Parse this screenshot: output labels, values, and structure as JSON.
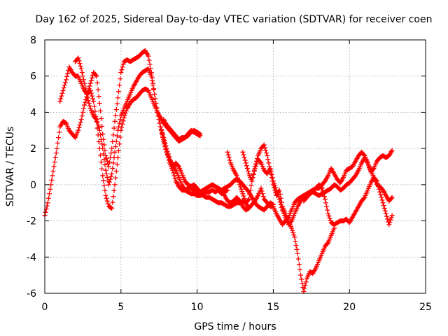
{
  "chart_data": {
    "type": "scatter",
    "title": "Day 162 of 2025, Sidereal Day-to-day VTEC variation (SDTVAR) for receiver coen",
    "xlabel": "GPS time / hours",
    "ylabel": "SDTVAR / TECUs",
    "xlim": [
      0,
      25
    ],
    "ylim": [
      -6,
      8
    ],
    "xticks": [
      "0",
      "5",
      "10",
      "15",
      "20",
      "25"
    ],
    "yticks": [
      "-6",
      "-4",
      "-2",
      "0",
      "2",
      "4",
      "6",
      "8"
    ],
    "grid": true,
    "marker": "+",
    "color": "#ff0000",
    "series": [
      {
        "x": [
          0.0,
          0.2,
          0.4,
          0.6,
          0.8,
          1.0,
          1.2,
          1.4,
          1.6,
          1.8,
          2.0,
          2.2,
          2.4,
          2.6,
          2.8,
          3.0,
          3.2,
          3.4,
          3.6,
          3.8,
          4.0,
          4.2,
          4.4,
          4.6,
          4.8,
          5.0,
          5.2,
          5.4,
          5.6,
          5.8,
          6.0,
          6.2,
          6.4,
          6.6,
          6.8,
          7.0,
          7.2,
          7.4,
          7.6,
          7.8,
          8.0,
          8.2,
          8.4,
          8.6,
          8.8,
          9.0,
          9.2,
          9.4,
          9.6,
          9.8,
          10.0,
          10.2
        ],
        "y": [
          -1.7,
          -1.0,
          0.0,
          1.0,
          2.0,
          3.2,
          3.5,
          3.4,
          3.0,
          2.8,
          2.6,
          3.0,
          3.6,
          4.4,
          5.0,
          5.2,
          4.6,
          3.5,
          2.0,
          0.5,
          -0.6,
          -1.2,
          -1.3,
          0.0,
          1.5,
          3.0,
          3.7,
          4.2,
          4.5,
          4.7,
          4.8,
          5.0,
          5.2,
          5.3,
          5.2,
          4.8,
          4.4,
          4.0,
          3.7,
          3.4,
          3.2,
          3.0,
          2.8,
          2.6,
          2.4,
          2.5,
          2.6,
          2.8,
          3.0,
          2.9,
          2.8,
          2.7
        ]
      },
      {
        "x": [
          1.0,
          1.2,
          1.4,
          1.6,
          1.8,
          2.0,
          2.2,
          2.4,
          2.6,
          2.8,
          3.0,
          3.2,
          3.4,
          3.6,
          3.8,
          4.0,
          4.2,
          4.4,
          4.6,
          4.8,
          5.0,
          5.2,
          5.4,
          5.6,
          5.8,
          6.0,
          6.2,
          6.4,
          6.6,
          6.8,
          7.0,
          7.2,
          7.4,
          7.6,
          7.8,
          8.0,
          8.2,
          8.4,
          8.6,
          8.8,
          9.0,
          9.2,
          9.4,
          9.6,
          9.8,
          10.0,
          10.2,
          10.4,
          10.6,
          10.8,
          11.0,
          11.2,
          11.4,
          11.6,
          11.8,
          12.0
        ],
        "y": [
          4.6,
          5.2,
          5.8,
          6.5,
          6.2,
          6.0,
          6.0,
          5.6,
          5.2,
          5.0,
          5.6,
          6.2,
          6.0,
          4.5,
          2.8,
          1.6,
          1.0,
          2.0,
          3.5,
          4.8,
          6.2,
          6.8,
          6.9,
          6.8,
          6.9,
          7.0,
          7.1,
          7.3,
          7.4,
          7.1,
          6.2,
          5.0,
          4.0,
          3.2,
          2.4,
          1.8,
          1.4,
          1.1,
          0.8,
          0.4,
          0.0,
          -0.3,
          -0.4,
          -0.5,
          -0.5,
          -0.6,
          -0.6,
          -0.5,
          -0.4,
          -0.4,
          -0.3,
          -0.4,
          -0.3,
          -0.5,
          -0.4,
          -0.3
        ]
      },
      {
        "x": [
          2.0,
          2.2,
          2.4,
          2.6,
          2.8,
          3.0,
          3.2,
          3.4,
          3.6,
          3.8,
          4.0,
          4.2,
          4.4,
          4.6,
          4.8,
          5.0,
          5.2,
          5.4,
          5.6,
          5.8,
          6.0,
          6.2,
          6.4,
          6.6,
          6.8,
          7.0,
          7.2,
          7.4,
          7.6,
          7.8,
          8.0,
          8.2,
          8.4,
          8.6,
          8.8,
          9.0,
          9.2,
          9.4,
          9.6,
          9.8,
          10.0,
          10.2,
          10.4,
          10.6,
          10.8,
          11.0,
          11.2,
          11.4,
          11.6,
          11.8,
          12.0,
          12.2,
          12.4,
          12.6,
          12.8,
          13.0,
          13.2,
          13.4
        ],
        "y": [
          6.8,
          7.0,
          6.4,
          5.6,
          4.8,
          4.2,
          3.8,
          3.6,
          3.0,
          2.0,
          0.8,
          0.0,
          0.6,
          1.8,
          3.0,
          3.8,
          4.2,
          4.6,
          5.0,
          5.4,
          5.7,
          6.0,
          6.2,
          6.3,
          6.4,
          6.0,
          5.0,
          4.0,
          3.2,
          2.5,
          1.8,
          1.2,
          0.8,
          0.2,
          -0.1,
          -0.3,
          -0.3,
          -0.2,
          -0.2,
          -0.3,
          -0.4,
          -0.5,
          -0.6,
          -0.7,
          -0.7,
          -0.8,
          -0.9,
          -1.0,
          -1.0,
          -1.1,
          -1.2,
          -1.2,
          -1.1,
          -1.0,
          -1.0,
          -0.9,
          -1.0,
          -1.3
        ]
      },
      {
        "x": [
          7.6,
          7.8,
          8.0,
          8.2,
          8.4,
          8.6,
          8.8,
          9.0,
          9.2,
          9.4,
          9.6,
          9.8,
          10.0,
          10.2,
          10.4,
          10.6,
          10.8,
          11.0,
          11.2,
          11.4,
          11.6,
          11.8,
          12.0,
          12.2,
          12.4,
          12.6,
          12.8,
          13.0,
          13.2,
          13.4,
          13.6,
          13.8,
          14.0,
          14.2,
          14.4,
          14.6,
          14.8,
          15.0
        ],
        "y": [
          3.2,
          2.6,
          2.0,
          1.4,
          1.0,
          1.2,
          1.0,
          0.6,
          0.2,
          0.0,
          -0.1,
          0.0,
          -0.2,
          -0.4,
          -0.3,
          -0.2,
          -0.1,
          0.0,
          -0.1,
          -0.2,
          -0.3,
          -0.2,
          -0.1,
          0.0,
          0.2,
          0.3,
          0.2,
          0.0,
          -0.2,
          -0.4,
          -0.7,
          -1.0,
          -1.2,
          -1.3,
          -1.4,
          -1.2,
          -1.0,
          -1.1
        ]
      },
      {
        "x": [
          7.8,
          8.0,
          8.2,
          8.4,
          8.6,
          8.8,
          9.0,
          9.2,
          9.4,
          9.6,
          9.8,
          10.0,
          10.2
        ],
        "y": [
          3.6,
          3.3,
          3.1,
          2.9,
          2.7,
          2.5,
          2.6,
          2.6,
          2.7,
          2.9,
          3.0,
          2.9,
          2.8
        ]
      },
      {
        "x": [
          12.0,
          12.2,
          12.4,
          12.6,
          12.8,
          13.0,
          13.2,
          13.4,
          13.6,
          13.8,
          14.0,
          14.2,
          14.4,
          14.6,
          14.8,
          15.0,
          15.2,
          15.4,
          15.6,
          15.8,
          16.0,
          16.2,
          16.4,
          16.6,
          16.8,
          17.0,
          17.2,
          17.4,
          17.6,
          17.8,
          18.0,
          18.2,
          18.4,
          18.6,
          18.8,
          19.0
        ],
        "y": [
          1.8,
          1.2,
          0.8,
          0.5,
          0.0,
          -0.5,
          -1.0,
          -0.8,
          0.2,
          1.0,
          1.6,
          2.0,
          2.2,
          1.6,
          0.8,
          0.0,
          -0.6,
          -0.3,
          -1.2,
          -1.6,
          -2.0,
          -2.4,
          -2.9,
          -3.8,
          -5.0,
          -5.9,
          -5.2,
          -4.8,
          -4.9,
          -4.6,
          -4.2,
          -3.8,
          -3.4,
          -3.2,
          -2.8,
          -2.4
        ]
      },
      {
        "x": [
          13.0,
          13.2,
          13.4,
          13.6,
          13.8,
          14.0,
          14.2,
          14.4,
          14.6,
          14.8,
          15.0,
          15.2,
          15.4,
          15.6,
          15.8,
          16.0,
          16.2,
          16.4,
          16.6,
          16.8,
          17.0,
          17.2,
          17.4,
          17.6,
          17.8,
          18.0,
          18.2,
          18.4,
          18.6,
          18.8,
          19.0,
          19.2,
          19.4,
          19.6,
          19.8,
          20.0,
          20.2,
          20.4,
          20.6,
          20.8,
          21.0,
          21.2,
          21.4,
          21.6,
          21.8,
          22.0,
          22.2,
          22.4,
          22.6,
          22.8
        ],
        "y": [
          1.8,
          1.2,
          0.6,
          0.2,
          0.9,
          1.4,
          1.2,
          0.8,
          0.6,
          0.9,
          0.2,
          -0.3,
          -0.8,
          -1.4,
          -1.8,
          -2.2,
          -2.0,
          -1.6,
          -1.2,
          -0.9,
          -0.6,
          -0.5,
          -0.4,
          -0.3,
          -0.2,
          -0.2,
          0.0,
          0.2,
          0.5,
          0.9,
          0.6,
          0.3,
          0.1,
          0.4,
          0.8,
          0.9,
          1.0,
          1.3,
          1.6,
          1.8,
          1.6,
          1.2,
          0.7,
          0.9,
          1.3,
          1.5,
          1.6,
          1.5,
          1.6,
          1.9
        ]
      },
      {
        "x": [
          11.6,
          11.8,
          12.0,
          12.2,
          12.4,
          12.6,
          12.8,
          13.0,
          13.2,
          13.4,
          13.6,
          13.8,
          14.0,
          14.2,
          14.4,
          14.6,
          14.8,
          15.0,
          15.2,
          15.4,
          15.6,
          15.8,
          16.0,
          16.2,
          16.4,
          16.6,
          16.8,
          17.0,
          17.2,
          17.4,
          17.6,
          17.8,
          18.0,
          18.2,
          18.4,
          18.6,
          18.8,
          19.0,
          19.2,
          19.4,
          19.6,
          19.8,
          20.0,
          20.2,
          20.4,
          20.6,
          20.8,
          21.0,
          21.2,
          21.4,
          21.6,
          21.8,
          22.0,
          22.2,
          22.4,
          22.6,
          22.8
        ],
        "y": [
          -0.3,
          -0.6,
          -0.9,
          -1.0,
          -0.9,
          -0.7,
          -0.9,
          -1.2,
          -1.4,
          -1.3,
          -1.1,
          -0.9,
          -0.6,
          -0.2,
          -0.8,
          -1.0,
          -1.2,
          -1.2,
          -1.6,
          -1.9,
          -2.2,
          -2.0,
          -1.8,
          -1.4,
          -1.0,
          -0.8,
          -0.7,
          -0.6,
          -0.6,
          -0.5,
          -0.3,
          -0.2,
          0.0,
          -0.2,
          -0.8,
          -1.6,
          -2.1,
          -2.2,
          -2.1,
          -2.0,
          -2.0,
          -1.9,
          -2.1,
          -1.8,
          -1.5,
          -1.2,
          -0.9,
          -0.7,
          -0.3,
          0.1,
          0.4,
          0.2,
          -0.4,
          -1.0,
          -1.6,
          -2.2,
          -1.7
        ]
      },
      {
        "x": [
          17.0,
          17.2,
          17.4,
          17.6,
          17.8,
          18.0,
          18.2,
          18.4,
          18.6,
          18.8,
          19.0,
          19.2,
          19.4,
          19.6,
          19.8,
          20.0,
          20.2,
          20.4,
          20.6,
          20.8,
          21.0,
          21.2,
          21.4,
          21.6,
          21.8,
          22.0,
          22.2,
          22.4,
          22.6,
          22.8
        ],
        "y": [
          -0.9,
          -0.7,
          -0.5,
          -0.4,
          -0.5,
          -0.6,
          -0.5,
          -0.4,
          -0.3,
          -0.2,
          0.0,
          -0.1,
          -0.3,
          -0.2,
          0.0,
          0.1,
          0.3,
          0.5,
          0.8,
          1.2,
          1.5,
          1.2,
          0.8,
          0.4,
          0.0,
          -0.1,
          -0.3,
          -0.6,
          -0.9,
          -0.7
        ]
      }
    ]
  }
}
